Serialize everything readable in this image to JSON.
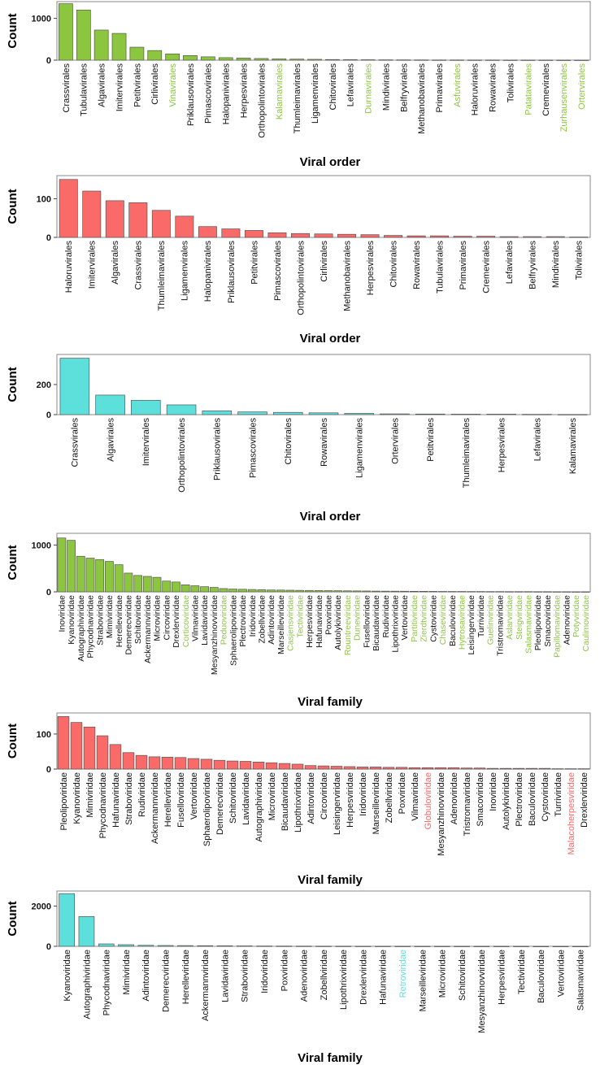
{
  "colors": {
    "green": "#8cc63e",
    "red": "#f96a69",
    "cyan": "#5ddfdc",
    "frame": "#8a8a8a",
    "text": "#111111"
  },
  "chart_data": [
    {
      "type": "bar",
      "ylabel": "Count",
      "xlabel": "Viral order",
      "color": "#8cc63e",
      "ylim": [
        0,
        1400
      ],
      "yticks": [
        0,
        1000
      ],
      "categories": [
        "Crassvirales",
        "Tubulavirales",
        "Algavirales",
        "Imitervirales",
        "Petitvirales",
        "Cirlivirales",
        "Vinavirales",
        "Priklausovirales",
        "Pimascovirales",
        "Halopanivirales",
        "Herpesvirales",
        "Orthopolintovirales",
        "Kalamavirales",
        "Thumleimavirales",
        "Ligamenvirales",
        "Chitovirales",
        "Lefavirales",
        "Durnavirales",
        "Mindivirales",
        "Belfryvirales",
        "Methanobavirales",
        "Primavirales",
        "Asfuvirales",
        "Haloruvirales",
        "Rowavirales",
        "Tolivirales",
        "Patatavirales",
        "Cremevirales",
        "Zurhausenvirales",
        "Ortervirales"
      ],
      "values": [
        1350,
        1200,
        720,
        640,
        310,
        230,
        150,
        110,
        80,
        60,
        50,
        40,
        30,
        25,
        20,
        15,
        12,
        10,
        8,
        7,
        6,
        5,
        5,
        4,
        4,
        3,
        3,
        3,
        2,
        2
      ],
      "highlighted": [
        "Vinavirales",
        "Kalamavirales",
        "Durnavirales",
        "Asfuvirales",
        "Patatavirales",
        "Zurhausenvirales",
        "Ortervirales"
      ]
    },
    {
      "type": "bar",
      "ylabel": "Count",
      "xlabel": "Viral order",
      "color": "#f96a69",
      "ylim": [
        0,
        160
      ],
      "yticks": [
        0,
        100
      ],
      "categories": [
        "Haloruvirales",
        "Imitervirales",
        "Algavirales",
        "Crassvirales",
        "Thumleimavirales",
        "Ligamenvirales",
        "Halopanivirales",
        "Priklausovirales",
        "Petitvirales",
        "Pimascovirales",
        "Orthopolintovirales",
        "Cirlivirales",
        "Methanobavirales",
        "Herpesvirales",
        "Chitovirales",
        "Rowavirales",
        "Tubulavirales",
        "Primavirales",
        "Cremevirales",
        "Lefavirales",
        "Belfryvirales",
        "Mindivirales",
        "Tolivirales"
      ],
      "values": [
        150,
        120,
        95,
        90,
        70,
        55,
        28,
        22,
        18,
        12,
        10,
        9,
        8,
        7,
        5,
        4,
        4,
        3,
        3,
        2,
        2,
        2,
        1
      ],
      "highlighted": []
    },
    {
      "type": "bar",
      "ylabel": "Count",
      "xlabel": "Viral order",
      "color": "#5ddfdc",
      "ylim": [
        0,
        400
      ],
      "yticks": [
        0,
        200
      ],
      "categories": [
        "Crassvirales",
        "Algavirales",
        "Imitervirales",
        "Orthopolintovirales",
        "Priklausovirales",
        "Pimascovirales",
        "Chitovirales",
        "Rowavirales",
        "Ligamenvirales",
        "Ortervirales",
        "Petitvirales",
        "Thumleimavirales",
        "Herpesvirales",
        "Lefavirales",
        "Kalamavirales"
      ],
      "values": [
        375,
        130,
        95,
        65,
        25,
        18,
        15,
        12,
        8,
        5,
        4,
        3,
        3,
        2,
        1
      ],
      "highlighted": []
    },
    {
      "type": "bar",
      "ylabel": "Count",
      "xlabel": "Viral family",
      "color": "#8cc63e",
      "ylim": [
        0,
        1250
      ],
      "yticks": [
        0,
        1000
      ],
      "categories": [
        "Inoviridae",
        "Kyanoviridae",
        "Autographiviridae",
        "Phycodnaviridae",
        "Straboviridae",
        "Mimiviridae",
        "Herelleviridae",
        "Demerecviridae",
        "Schitoviridae",
        "Ackermannviridae",
        "Microviridae",
        "Circoviridae",
        "Drexlerviridae",
        "Corticoviridae",
        "Vilmaviridae",
        "Lavidaviridae",
        "Mesyanzhinovviridae",
        "Peduoviridae",
        "Sphaerolipoviridae",
        "Plectroviridae",
        "Iridoviridae",
        "Zobellviridae",
        "Adintoviridae",
        "Marseilleviridae",
        "Casjensviridae",
        "Tectiviridae",
        "Herpesviridae",
        "Hafunaviridae",
        "Poxviridae",
        "Autolykiviridae",
        "Rountreeviridae",
        "Duneviridae",
        "Fuselloviridae",
        "Bicaudaviridae",
        "Rudiviridae",
        "Lipothrixviridae",
        "Vertoviridae",
        "Partitiviridae",
        "Zierdtviridae",
        "Cystoviridae",
        "Chaseviridae",
        "Baculoviridae",
        "Hytrosaviridae",
        "Leisingerviridae",
        "Turriviridae",
        "Guelinviridae",
        "Tristromaviridae",
        "Aslarviridae",
        "Steigviridae",
        "Salasmaviridae",
        "Pleolipoviridae",
        "Smacoviridae",
        "Papillomaviridae",
        "Adenoviridae",
        "Potyviridae",
        "Caulimoviridae"
      ],
      "values": [
        1150,
        1100,
        760,
        720,
        690,
        650,
        580,
        400,
        350,
        330,
        310,
        230,
        210,
        150,
        130,
        110,
        95,
        70,
        60,
        55,
        50,
        45,
        40,
        38,
        35,
        32,
        30,
        28,
        26,
        24,
        22,
        20,
        18,
        16,
        15,
        14,
        13,
        12,
        11,
        10,
        9,
        8,
        8,
        7,
        7,
        6,
        6,
        5,
        5,
        5,
        4,
        4,
        3,
        3,
        2,
        2
      ],
      "highlighted": [
        "Corticoviridae",
        "Peduoviridae",
        "Casjensviridae",
        "Tectiviridae",
        "Rountreeviridae",
        "Duneviridae",
        "Partitiviridae",
        "Zierdtviridae",
        "Chaseviridae",
        "Hytrosaviridae",
        "Guelinviridae",
        "Aslarviridae",
        "Steigviridae",
        "Salasmaviridae",
        "Papillomaviridae",
        "Potyviridae",
        "Caulimoviridae"
      ]
    },
    {
      "type": "bar",
      "ylabel": "Count",
      "xlabel": "Viral family",
      "color": "#f96a69",
      "ylim": [
        0,
        160
      ],
      "yticks": [
        0,
        100
      ],
      "categories": [
        "Pleolipoviridae",
        "Kyanoviridae",
        "Mimiviridae",
        "Phycodnaviridae",
        "Hafunaviridae",
        "Straboviridae",
        "Rudiviridae",
        "Ackermannviridae",
        "Herelleviridae",
        "Fuselloviridae",
        "Vertoviridae",
        "Sphaerolipoviridae",
        "Demerecviridae",
        "Schitoviridae",
        "Lavidaviridae",
        "Autographiviridae",
        "Microviridae",
        "Bicaudaviridae",
        "Lipothrixviridae",
        "Adintoviridae",
        "Circoviridae",
        "Leisingerviridae",
        "Herpesviridae",
        "Iridoviridae",
        "Marseilleviridae",
        "Zobellviridae",
        "Poxviridae",
        "Vilmaviridae",
        "Globuloviridae",
        "Mesyanzhinovviridae",
        "Adenoviridae",
        "Tristromaviridae",
        "Smacoviridae",
        "Inoviridae",
        "Autolykiviridae",
        "Plectroviridae",
        "Baculoviridae",
        "Cystoviridae",
        "Turriviridae",
        "Malacoherpesviridae",
        "Drexlerviridae"
      ],
      "values": [
        150,
        133,
        120,
        95,
        70,
        47,
        39,
        35,
        34,
        33,
        30,
        28,
        25,
        23,
        22,
        20,
        18,
        16,
        14,
        10,
        9,
        8,
        7,
        6,
        6,
        5,
        5,
        4,
        4,
        4,
        4,
        3,
        3,
        2,
        2,
        2,
        2,
        2,
        1,
        1,
        1
      ],
      "highlighted": [
        "Globuloviridae",
        "Malacoherpesviridae"
      ]
    },
    {
      "type": "bar",
      "ylabel": "Count",
      "xlabel": "Viral family",
      "color": "#5ddfdc",
      "ylim": [
        0,
        2750
      ],
      "yticks": [
        0,
        2000
      ],
      "categories": [
        "Kyanoviridae",
        "Autographiviridae",
        "Phycodnaviridae",
        "Mimiviridae",
        "Adintoviridae",
        "Demerecviridae",
        "Herelleviridae",
        "Ackermannviridae",
        "Lavidaviridae",
        "Straboviridae",
        "Iridoviridae",
        "Poxviridae",
        "Adenoviridae",
        "Zobellviridae",
        "Lipothrixviridae",
        "Drexlerviridae",
        "Hafunaviridae",
        "Retroviridae",
        "Marseilleviridae",
        "Microviridae",
        "Schitoviridae",
        "Mesyanzhinovviridae",
        "Herpesviridae",
        "Tectiviridae",
        "Baculoviridae",
        "Vertoviridae",
        "Salasmaviridae"
      ],
      "values": [
        2620,
        1480,
        120,
        80,
        50,
        40,
        35,
        30,
        25,
        20,
        15,
        12,
        10,
        8,
        7,
        6,
        5,
        4,
        4,
        3,
        3,
        2,
        2,
        2,
        1,
        1,
        1
      ],
      "highlighted": [
        "Retroviridae"
      ]
    }
  ]
}
